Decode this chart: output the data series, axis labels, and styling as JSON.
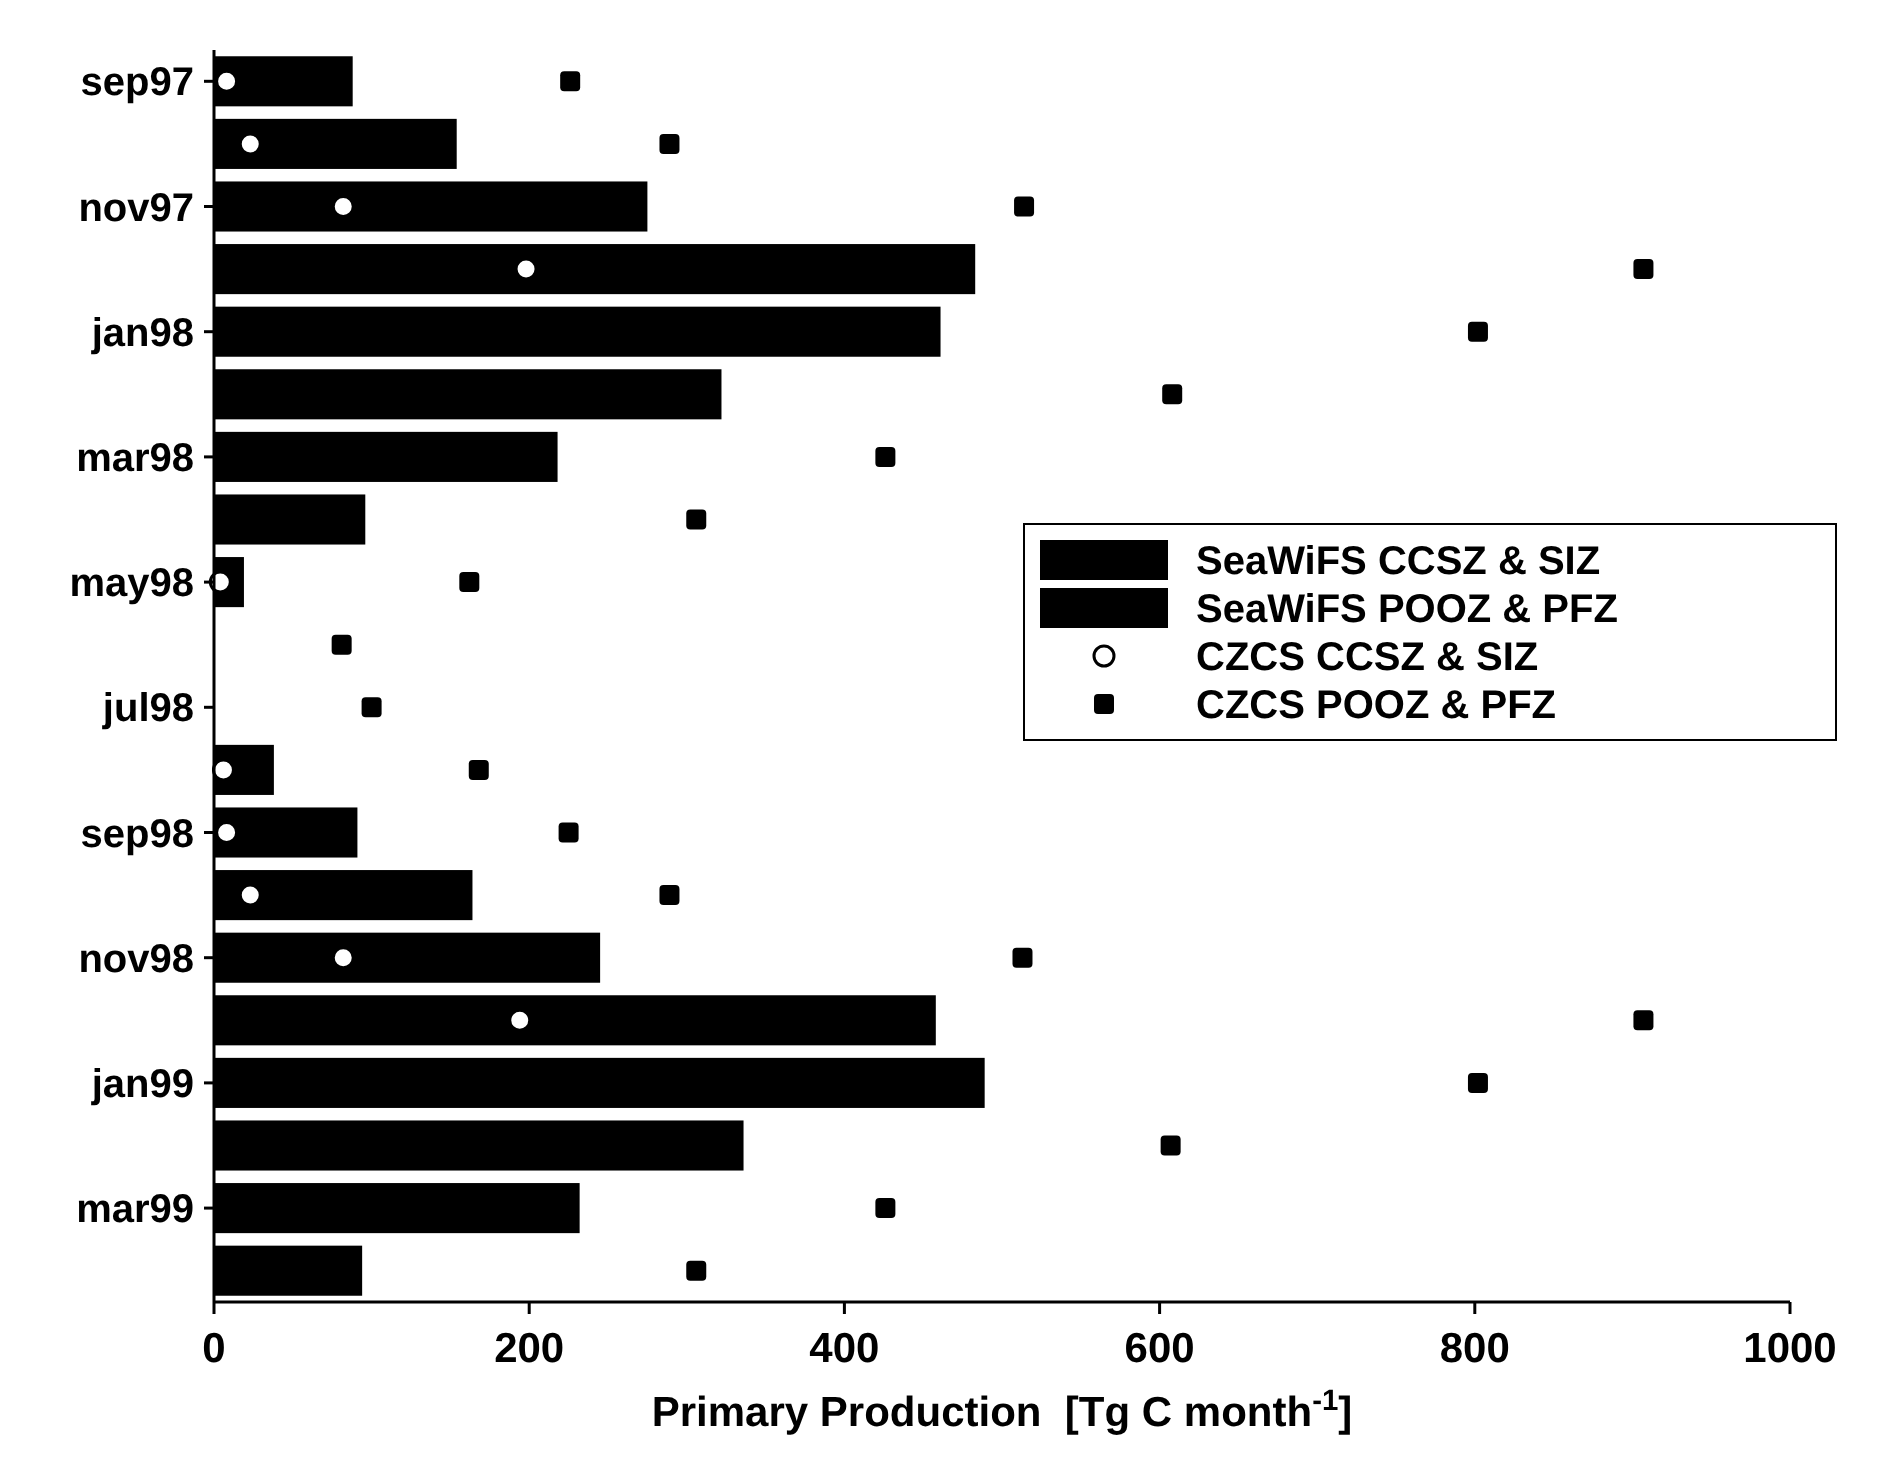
{
  "chart_data": {
    "type": "bar",
    "orientation": "horizontal",
    "xlabel": "Primary Production  [Tg C month$^{-1}$]",
    "categories": [
      "sep97",
      null,
      "nov97",
      null,
      "jan98",
      null,
      "mar98",
      null,
      "may98",
      null,
      "jul98",
      null,
      "sep98",
      null,
      "nov98",
      null,
      "jan99",
      null,
      "mar99",
      null
    ],
    "xlim": [
      0,
      1000
    ],
    "xticks": [
      0,
      200,
      400,
      600,
      800,
      1000
    ],
    "legend": "right",
    "grid": false,
    "series": [
      {
        "name": "SeaWiFS CCSZ & SIZ",
        "color": "#000000",
        "values": [
          null,
          null,
          null,
          null,
          null,
          null,
          null,
          null,
          null,
          null,
          null,
          null,
          null,
          null,
          null,
          null,
          null,
          null,
          null,
          null
        ]
      },
      {
        "name": "SeaWiFS POOZ & PFZ",
        "color": "#000000",
        "values": [
          88,
          154,
          275,
          483,
          461,
          322,
          218,
          96,
          19,
          null,
          null,
          38,
          91,
          164,
          245,
          458,
          489,
          336,
          232,
          94
        ]
      },
      {
        "name": "CZCS CCSZ & SIZ",
        "type": "scatter",
        "marker": "circle",
        "color": "#000000",
        "values": [
          8,
          23,
          82,
          198,
          null,
          null,
          null,
          null,
          4,
          null,
          null,
          6,
          8,
          23,
          82,
          194,
          null,
          null,
          null,
          null
        ]
      },
      {
        "name": "CZCS POOZ & PFZ",
        "type": "scatter",
        "marker": "square",
        "color": "#000000",
        "values": [
          226,
          289,
          514,
          907,
          802,
          608,
          426,
          306,
          162,
          81,
          100,
          168,
          225,
          289,
          513,
          907,
          802,
          607,
          426,
          306
        ]
      }
    ]
  }
}
